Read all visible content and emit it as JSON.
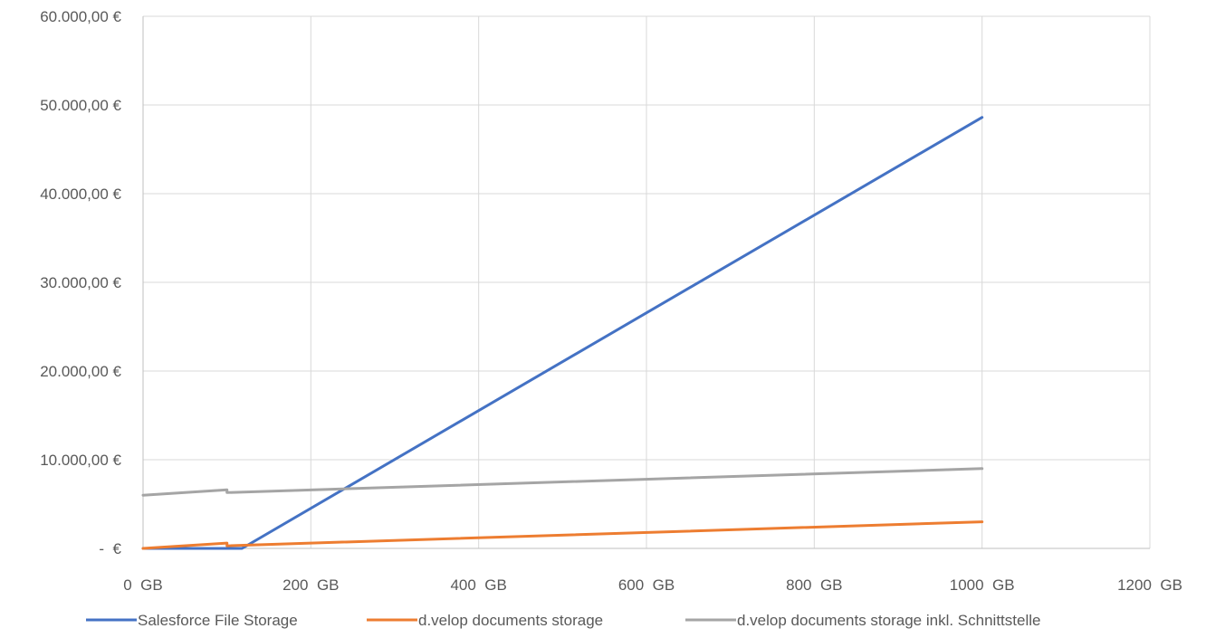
{
  "chart_data": {
    "type": "line",
    "title": "",
    "xlabel": "",
    "ylabel": "",
    "xlim": [
      0,
      1200
    ],
    "ylim": [
      0,
      60000
    ],
    "x_ticks": [
      0,
      200,
      400,
      600,
      800,
      1000,
      1200
    ],
    "y_ticks": [
      0,
      10000,
      20000,
      30000,
      40000,
      50000,
      60000
    ],
    "x_tick_labels": [
      "0  GB",
      "200  GB",
      "400  GB",
      "600  GB",
      "800  GB",
      "1000  GB",
      "1200  GB"
    ],
    "y_tick_labels": [
      " -  €",
      "10.000,00 €",
      "20.000,00 €",
      "30.000,00 €",
      "40.000,00 €",
      "50.000,00 €",
      "60.000,00 €"
    ],
    "grid": true,
    "legend_position": "bottom",
    "series": [
      {
        "name": "Salesforce File Storage",
        "color": "#4472C4",
        "points": [
          [
            0,
            0
          ],
          [
            118,
            0
          ],
          [
            1000,
            48600
          ]
        ]
      },
      {
        "name": "d.velop documents storage",
        "color": "#ED7D31",
        "points": [
          [
            0,
            0
          ],
          [
            100,
            600
          ],
          [
            100,
            300
          ],
          [
            1000,
            3000
          ]
        ]
      },
      {
        "name": "d.velop documents storage inkl. Schnittstelle",
        "color": "#A5A5A5",
        "points": [
          [
            0,
            6000
          ],
          [
            100,
            6600
          ],
          [
            100,
            6300
          ],
          [
            1000,
            9000
          ]
        ]
      }
    ]
  }
}
